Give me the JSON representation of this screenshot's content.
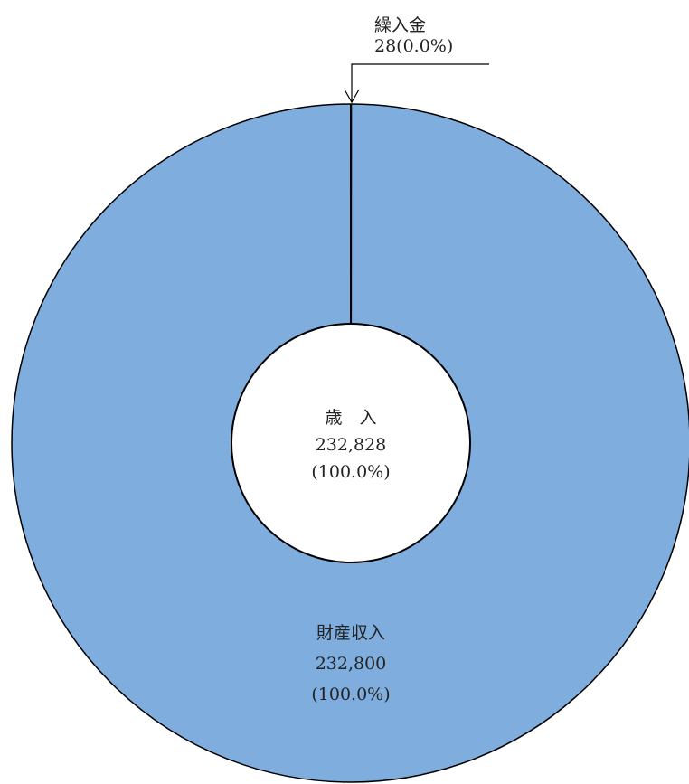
{
  "chart_data": {
    "type": "pie",
    "title": "",
    "center": {
      "label": "歳　入",
      "value": "232,828",
      "percent": "(100.0%)"
    },
    "slices": [
      {
        "name": "財産収入",
        "value": 232800,
        "value_label": "232,800",
        "percent_label": "(100.0%)",
        "color": "#7eadde"
      },
      {
        "name": "繰入金",
        "value": 28,
        "value_label": "28",
        "percent_label": "(0.0%)",
        "color": "#7eadde"
      }
    ],
    "total": 232828,
    "start": "top",
    "direction": "counterclockwise",
    "ring_color": "#7eadde",
    "outline_color": "#000000"
  }
}
